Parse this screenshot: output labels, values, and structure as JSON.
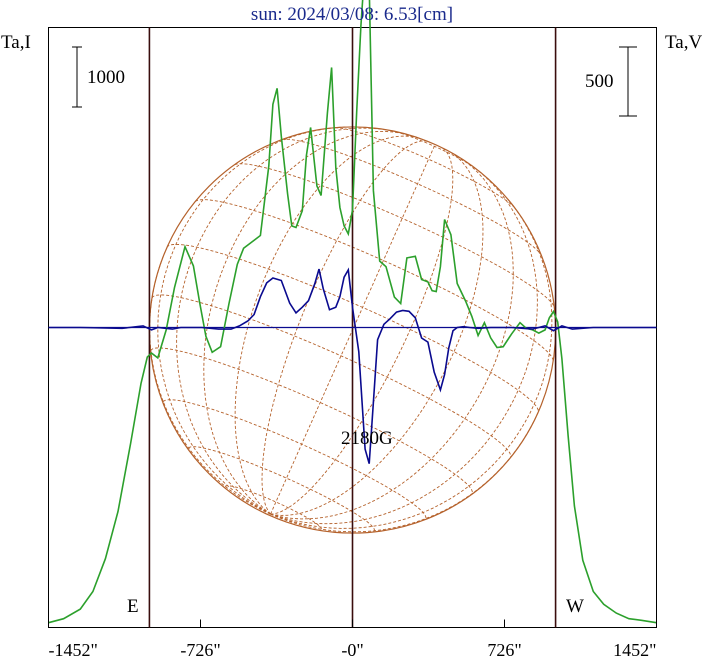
{
  "header": {
    "title": "sun: 2024/03/08: 6.53[cm]"
  },
  "labels": {
    "left_axis": "Ta,I",
    "right_axis": "Ta,V",
    "left_scale": "1000",
    "right_scale": "500",
    "east": "E",
    "west": "W",
    "peak_field": "2180G"
  },
  "colors": {
    "intensity": "#2ca02c",
    "polarization": "#0a0a8f",
    "grid": "#b5622c",
    "markers": "#3a0d0d",
    "title": "#1a2a8c"
  },
  "chart_data": {
    "type": "line",
    "title": "sun: 2024/03/08: 6.53[cm]",
    "xlabel": "",
    "ylabel_left": "Ta,I",
    "ylabel_right": "Ta,V",
    "xlim": [
      -1452,
      1452
    ],
    "x_ticks": [
      -1452,
      -726,
      0,
      726,
      1452
    ],
    "x_tick_labels": [
      "-1452\"",
      "-726\"",
      "-0\"",
      "726\"",
      "1452\""
    ],
    "vertical_markers": [
      -970,
      0,
      970
    ],
    "solar_radius": 970,
    "scale_bars": {
      "left_I": 1000,
      "right_V": 500
    },
    "grid": false,
    "series": [
      {
        "key": "I",
        "axis": "left",
        "ylim": [
          0,
          7500
        ],
        "x": [
          -1452,
          -1380,
          -1300,
          -1240,
          -1180,
          -1120,
          -1060,
          -1010,
          -980,
          -960,
          -930,
          -890,
          -850,
          -800,
          -760,
          -730,
          -700,
          -670,
          -630,
          -590,
          -550,
          -520,
          -480,
          -440,
          -400,
          -380,
          -360,
          -340,
          -310,
          -290,
          -270,
          -240,
          -220,
          -200,
          -170,
          -150,
          -120,
          -100,
          -80,
          -60,
          -40,
          -20,
          0,
          20,
          40,
          60,
          80,
          100,
          130,
          160,
          200,
          230,
          260,
          300,
          330,
          360,
          380,
          400,
          420,
          440,
          470,
          500,
          540,
          570,
          600,
          630,
          660,
          690,
          720,
          760,
          800,
          830,
          860,
          890,
          920,
          940,
          960,
          980,
          1000,
          1030,
          1060,
          1100,
          1150,
          1200,
          1260,
          1320,
          1380,
          1452
        ],
        "y": [
          60,
          110,
          230,
          450,
          860,
          1450,
          2300,
          3050,
          3380,
          3430,
          3370,
          3720,
          4250,
          4760,
          4520,
          4060,
          3640,
          3440,
          3510,
          4050,
          4540,
          4740,
          4820,
          4900,
          5770,
          6540,
          6740,
          6140,
          5420,
          5020,
          5000,
          5210,
          5900,
          6250,
          5520,
          5400,
          6430,
          7000,
          5750,
          5250,
          5020,
          4920,
          5220,
          6450,
          7520,
          8300,
          8020,
          5460,
          4580,
          4510,
          4130,
          4050,
          4620,
          4640,
          4350,
          4320,
          4210,
          4200,
          4510,
          5100,
          4910,
          4300,
          4080,
          3890,
          3650,
          3810,
          3620,
          3500,
          3510,
          3670,
          3810,
          3740,
          3720,
          3680,
          3720,
          3870,
          3950,
          3820,
          3360,
          2400,
          1520,
          840,
          450,
          290,
          180,
          110,
          90,
          60
        ]
      },
      {
        "key": "V",
        "axis": "right",
        "ylim": [
          -3700,
          3700
        ],
        "x": [
          -1452,
          -1300,
          -1100,
          -1000,
          -960,
          -930,
          -860,
          -820,
          -720,
          -640,
          -580,
          -540,
          -500,
          -470,
          -440,
          -410,
          -380,
          -340,
          -300,
          -270,
          -240,
          -210,
          -180,
          -160,
          -140,
          -110,
          -80,
          -60,
          -40,
          -20,
          0,
          30,
          60,
          80,
          100,
          120,
          150,
          180,
          210,
          240,
          270,
          300,
          330,
          360,
          390,
          420,
          440,
          460,
          480,
          500,
          530,
          560,
          600,
          660,
          760,
          860,
          920,
          960,
          1000,
          1050,
          1150,
          1300,
          1452
        ],
        "y": [
          0,
          0,
          -10,
          20,
          -30,
          0,
          -20,
          0,
          0,
          -20,
          -20,
          20,
          80,
          160,
          380,
          550,
          610,
          580,
          300,
          180,
          250,
          330,
          540,
          720,
          480,
          220,
          250,
          380,
          620,
          710,
          250,
          -300,
          -1500,
          -1680,
          -920,
          -150,
          40,
          110,
          190,
          210,
          200,
          120,
          -130,
          -180,
          -550,
          -770,
          -580,
          -250,
          -40,
          0,
          10,
          0,
          -10,
          0,
          0,
          -20,
          20,
          -40,
          20,
          -20,
          0,
          0,
          0
        ]
      }
    ]
  }
}
